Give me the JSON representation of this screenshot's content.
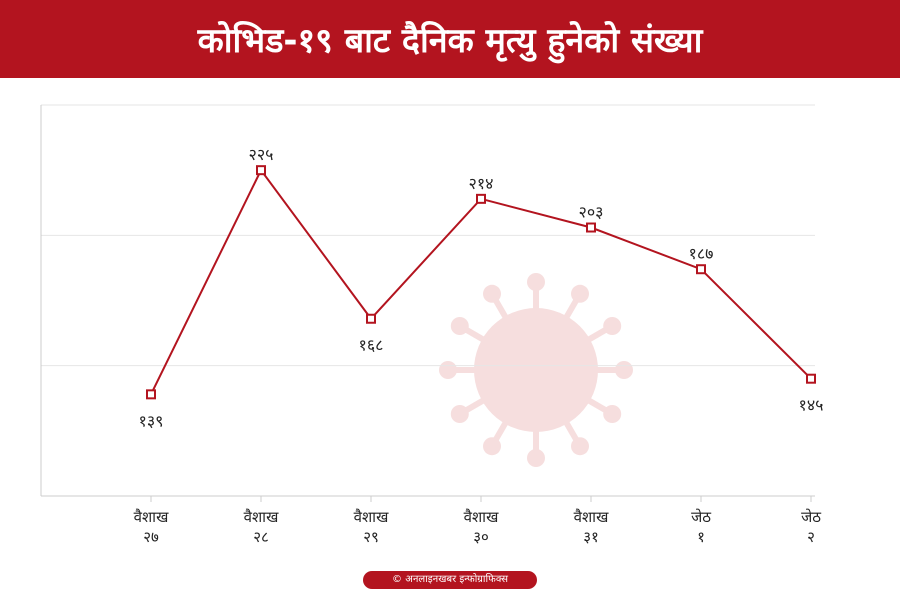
{
  "header": {
    "title": "कोभिड-१९ बाट दैनिक मृत्यु हुनेको संख्या"
  },
  "footer": {
    "credit": "© अनलाइनखबर इन्फोग्राफिक्स"
  },
  "colors": {
    "accent": "#b3141f",
    "grid": "#e6e6e6",
    "axis": "#cccccc",
    "text": "#222222",
    "watermark": "#f6dede"
  },
  "chart_data": {
    "type": "line",
    "title": "",
    "xlabel": "",
    "ylabel": "",
    "ylim": [
      100,
      250
    ],
    "grid": true,
    "legend": "none",
    "categories": [
      [
        "वैशाख",
        "२७"
      ],
      [
        "वैशाख",
        "२८"
      ],
      [
        "वैशाख",
        "२९"
      ],
      [
        "वैशाख",
        "३०"
      ],
      [
        "वैशाख",
        "३१"
      ],
      [
        "जेठ",
        "१"
      ],
      [
        "जेठ",
        "२"
      ]
    ],
    "values": [
      139,
      225,
      168,
      214,
      203,
      187,
      145
    ],
    "value_labels": [
      "१३९",
      "२२५",
      "१६८",
      "२१४",
      "२०३",
      "१८७",
      "१४५"
    ],
    "label_side": [
      "below",
      "above",
      "below",
      "above",
      "above",
      "above",
      "below"
    ]
  }
}
